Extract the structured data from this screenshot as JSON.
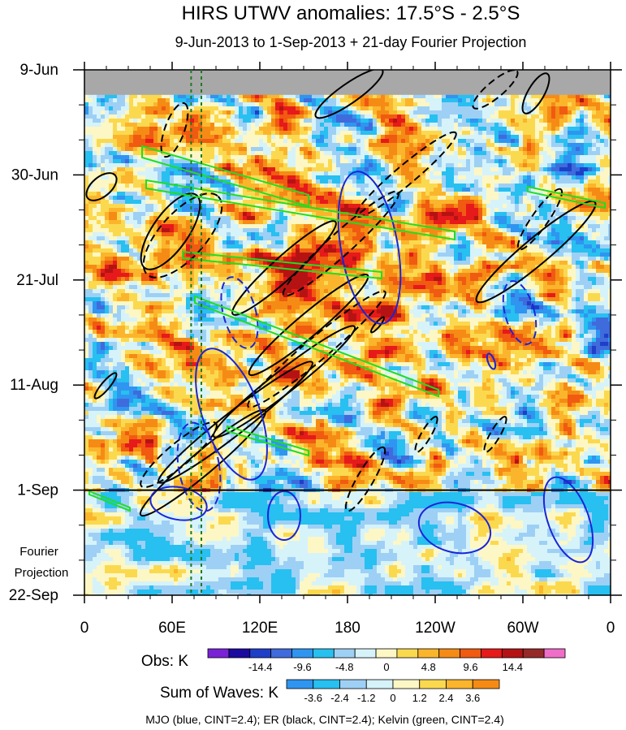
{
  "chart_data": {
    "type": "heatmap",
    "title": "HIRS UTWV anomalies: 17.5°S - 2.5°S",
    "subtitle": "9-Jun-2013 to 1-Sep-2013 + 21-day Fourier Projection",
    "xlabel": "",
    "ylabel": "",
    "x_ticks": [
      "0",
      "60E",
      "120E",
      "180",
      "120W",
      "60W",
      "0"
    ],
    "x_tick_values": [
      0,
      60,
      120,
      180,
      240,
      300,
      360
    ],
    "y_ticks": [
      "9-Jun",
      "30-Jun",
      "21-Jul",
      "11-Aug",
      "1-Sep",
      "22-Sep"
    ],
    "y_tick_days": [
      0,
      21,
      42,
      63,
      84,
      105
    ],
    "xlim": [
      0,
      360
    ],
    "ylim_days": [
      0,
      105
    ],
    "observation_end_day": 84,
    "missing_data_until_day": 5,
    "marker_longitudes": [
      73,
      80
    ],
    "projection_label": [
      "Fourier",
      "Projection"
    ],
    "obs_colorbar": {
      "label": "Obs: K",
      "colors": [
        "#7a23d6",
        "#1a0aa0",
        "#1f3fc8",
        "#3f6bdc",
        "#2f95f0",
        "#27c0f0",
        "#9ed0f5",
        "#d6f3fa",
        "#fdf7c5",
        "#fbd94f",
        "#fbb52c",
        "#f58b15",
        "#f05a11",
        "#e61a1a",
        "#b51313",
        "#962a2a",
        "#f06ec8"
      ],
      "labels": [
        "-14.4",
        "-9.6",
        "-4.8",
        "0",
        "4.8",
        "9.6",
        "14.4"
      ]
    },
    "waves_colorbar": {
      "label": "Sum of Waves: K",
      "colors": [
        "#2f95f0",
        "#27c0f0",
        "#9ed0f5",
        "#d6f3fa",
        "#fdf7c5",
        "#fbd94f",
        "#fbb52c",
        "#f58b15"
      ],
      "labels": [
        "-3.6",
        "-2.4",
        "-1.2",
        "0",
        "1.2",
        "2.4",
        "3.6"
      ]
    },
    "footer": "MJO (blue, CINT=2.4); ER (black, CINT=2.4); Kelvin (green, CINT=2.4)",
    "series": [
      {
        "name": "MJO",
        "color": "#1a25d8"
      },
      {
        "name": "ER",
        "color": "#000000"
      },
      {
        "name": "Kelvin",
        "color": "#22dd22"
      }
    ]
  }
}
